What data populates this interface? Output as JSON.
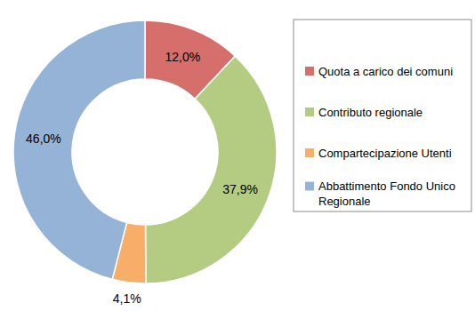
{
  "chart_data": {
    "type": "pie",
    "categories": [
      "Quota a carico dei comuni",
      "Contributo regionale",
      "Compartecipazione Utenti",
      "Abbattimento Fondo Unico Regionale"
    ],
    "values": [
      12.0,
      37.9,
      4.1,
      46.0
    ],
    "value_labels": [
      "12,0%",
      "37,9%",
      "4,1%",
      "46,0%"
    ],
    "colors": [
      "#d66e6c",
      "#b3cc82",
      "#f8ad68",
      "#95b3d7"
    ],
    "data_labels": true,
    "legend": "right"
  }
}
